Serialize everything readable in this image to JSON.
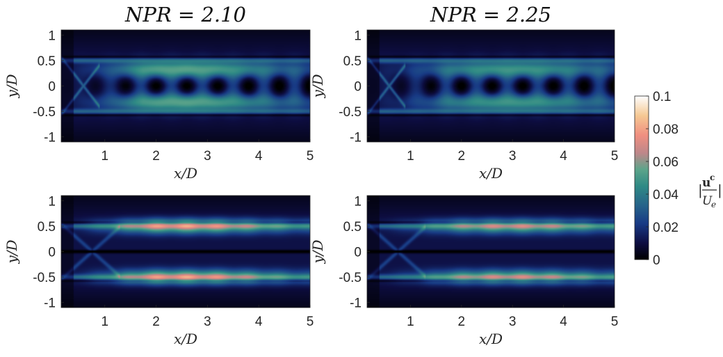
{
  "chart_data": [
    {
      "type": "heatmap",
      "title": "NPR = 2.10",
      "xlabel": "x/D",
      "ylabel": "y/D",
      "xlim": [
        0.15,
        5
      ],
      "ylim": [
        -1.1,
        1.1
      ],
      "xticks": [
        "1",
        "2",
        "3",
        "4",
        "5"
      ],
      "yticks": [
        "1",
        "0.5",
        "0",
        "-0.5",
        "-1"
      ],
      "pattern": "central-cells",
      "peak_value": 0.065,
      "peak_x": 2.5,
      "peak_y": 0.35
    },
    {
      "type": "heatmap",
      "title": "NPR = 2.25",
      "xlabel": "x/D",
      "ylabel": "y/D",
      "xlim": [
        0.15,
        5
      ],
      "ylim": [
        -1.1,
        1.1
      ],
      "xticks": [
        "1",
        "2",
        "3",
        "4",
        "5"
      ],
      "yticks": [
        "1",
        "0.5",
        "0",
        "-0.5",
        "-1"
      ],
      "pattern": "central-cells",
      "peak_value": 0.058,
      "peak_x": 3.0,
      "peak_y": 0.35
    },
    {
      "type": "heatmap",
      "title": "",
      "xlabel": "x/D",
      "ylabel": "y/D",
      "xlim": [
        0.15,
        5
      ],
      "ylim": [
        -1.1,
        1.1
      ],
      "xticks": [
        "1",
        "2",
        "3",
        "4",
        "5"
      ],
      "yticks": [
        "1",
        "0.5",
        "0",
        "-0.5",
        "-1"
      ],
      "pattern": "shear-layers",
      "peak_value": 0.07,
      "peak_x": 2.5,
      "peak_y": 0.5
    },
    {
      "type": "heatmap",
      "title": "",
      "xlabel": "x/D",
      "ylabel": "y/D",
      "xlim": [
        0.15,
        5
      ],
      "ylim": [
        -1.1,
        1.1
      ],
      "xticks": [
        "1",
        "2",
        "3",
        "4",
        "5"
      ],
      "yticks": [
        "1",
        "0.5",
        "0",
        "-0.5",
        "-1"
      ],
      "pattern": "shear-layers",
      "peak_value": 0.06,
      "peak_x": 3.0,
      "peak_y": 0.5
    }
  ],
  "colorbar": {
    "range": [
      0,
      0.1
    ],
    "ticks": [
      "0.1",
      "0.08",
      "0.06",
      "0.04",
      "0.02",
      "0"
    ],
    "label_left_bar": "|",
    "label_numerator": "u",
    "label_superscript": "c",
    "label_denominator": "U",
    "label_subscript": "e",
    "label_right_bar": "|",
    "colormap": [
      "#000000",
      "#0d0d40",
      "#183a85",
      "#26638a",
      "#2f8a85",
      "#5ca48a",
      "#bd878a",
      "#f08f80",
      "#f5c893",
      "#ffffff"
    ]
  }
}
